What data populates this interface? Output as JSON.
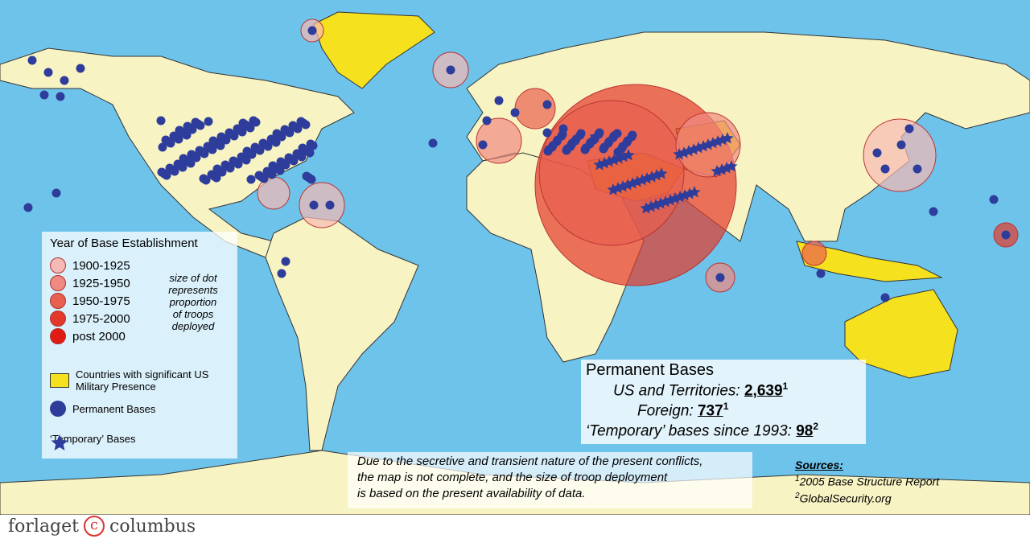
{
  "legend": {
    "title": "Year of Base Establishment",
    "years": [
      "1900-1925",
      "1925-1950",
      "1950-1975",
      "1975-2000",
      "post 2000"
    ],
    "size_note": [
      "size of dot",
      "represents",
      "proportion",
      "of troops",
      "deployed"
    ],
    "items": [
      "Countries with significant US Military Presence",
      "Permanent Bases",
      "‘Temporary’ Bases"
    ]
  },
  "stats": {
    "title": "Permanent Bases",
    "rows": [
      {
        "label": "US and Territories:",
        "value": "2,639",
        "note": "1"
      },
      {
        "label": "Foreign:",
        "value": "737",
        "note": "1"
      },
      {
        "label": "‘Temporary’ bases since 1993:",
        "value": "98",
        "note": "2"
      }
    ]
  },
  "disclaimer": [
    "Due to the secretive and transient nature of the present conflicts,",
    "the map is not complete, and the size of troop deployment",
    "is based on the present availability of data."
  ],
  "sources": {
    "title": "Sources:",
    "items": [
      {
        "note": "1",
        "text": "2005 Base Structure Report"
      },
      {
        "note": "2",
        "text": "GlobalSecurity.org"
      }
    ]
  },
  "footer": {
    "left": "forlaget",
    "mark": "c",
    "right": "columbus"
  }
}
